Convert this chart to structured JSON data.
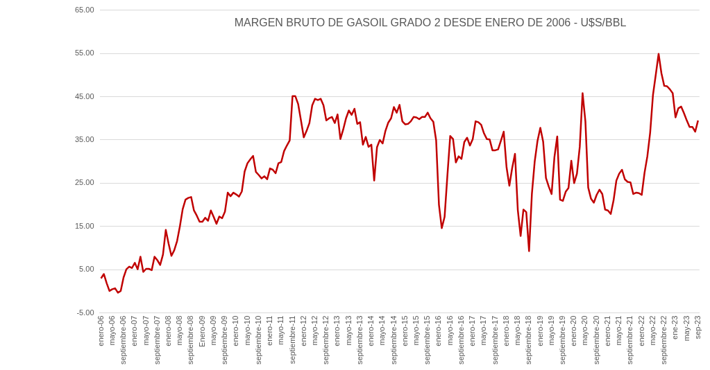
{
  "chart_data": {
    "type": "line",
    "title": "MARGEN BRUTO DE GASOIL GRADO 2 DESDE ENERO DE 2006 - U$S/BBL",
    "categories": [
      "enero-06",
      null,
      null,
      null,
      "mayo-06",
      null,
      null,
      null,
      "septiembre-06",
      null,
      null,
      null,
      "enero-07",
      null,
      null,
      null,
      "mayo-07",
      null,
      null,
      null,
      "septiembre-07",
      null,
      null,
      null,
      "enero-08",
      null,
      null,
      null,
      "mayo-08",
      null,
      null,
      null,
      "septiembre-08",
      null,
      null,
      null,
      "Enero-09",
      null,
      null,
      null,
      "mayo-09",
      null,
      null,
      null,
      "septiembre-09",
      null,
      null,
      null,
      "enero-10",
      null,
      null,
      null,
      "mayo-10",
      null,
      null,
      null,
      "septiembre-10",
      null,
      null,
      null,
      "enero-11",
      null,
      null,
      null,
      "mayo-11",
      null,
      null,
      null,
      "septiembre-11",
      null,
      null,
      null,
      "enero-12",
      null,
      null,
      null,
      "mayo-12",
      null,
      null,
      null,
      "septiembre-12",
      null,
      null,
      null,
      "enero-13",
      null,
      null,
      null,
      "mayo-13",
      null,
      null,
      null,
      "septiembre-13",
      null,
      null,
      null,
      "enero-14",
      null,
      null,
      null,
      "mayo-14",
      null,
      null,
      null,
      "septiembre-14",
      null,
      null,
      null,
      "enero-15",
      null,
      null,
      null,
      "mayo-15",
      null,
      null,
      null,
      "septiembre-15",
      null,
      null,
      null,
      "enero-16",
      null,
      null,
      null,
      "mayo-16",
      null,
      null,
      null,
      "septiembre-16",
      null,
      null,
      null,
      "enero-17",
      null,
      null,
      null,
      "mayo-17",
      null,
      null,
      null,
      "septiembre-17",
      null,
      null,
      null,
      "enero-18",
      null,
      null,
      null,
      "mayo-18",
      null,
      null,
      null,
      "septiembre-18",
      null,
      null,
      null,
      "enero-19",
      null,
      null,
      null,
      "mayo-19",
      null,
      null,
      null,
      "septiembre-19",
      null,
      null,
      null,
      "enero-20",
      null,
      null,
      null,
      "mayo-20",
      null,
      null,
      null,
      "septiembre-20",
      null,
      null,
      null,
      "enero-21",
      null,
      null,
      null,
      "mayo-21",
      null,
      null,
      null,
      "septiembre-21",
      null,
      null,
      null,
      "enero-22",
      null,
      null,
      null,
      "mayo-22",
      null,
      null,
      null,
      "septiembre-22",
      null,
      null,
      null,
      "ene-23",
      null,
      null,
      null,
      "may-23",
      null,
      null,
      null,
      "sep-23"
    ],
    "series": [
      {
        "color": "#c00000",
        "values": [
          3.0,
          4.0,
          1.9,
          0.1,
          0.5,
          0.7,
          -0.3,
          0.1,
          3.2,
          5.1,
          5.7,
          5.4,
          6.6,
          5.1,
          8.0,
          4.5,
          5.2,
          5.2,
          4.9,
          8.0,
          7.2,
          6.1,
          8.5,
          14.2,
          11.0,
          8.2,
          9.5,
          11.6,
          15.0,
          19.0,
          21.2,
          21.6,
          21.8,
          18.7,
          17.5,
          16.1,
          16.1,
          17.0,
          16.3,
          18.7,
          17.2,
          15.6,
          17.3,
          16.9,
          18.4,
          22.8,
          22.0,
          22.8,
          22.4,
          21.9,
          23.1,
          27.7,
          29.6,
          30.5,
          31.3,
          27.6,
          26.9,
          26.1,
          26.6,
          25.9,
          28.4,
          28.1,
          27.3,
          29.6,
          29.9,
          32.4,
          33.7,
          34.9,
          45.1,
          45.1,
          43.3,
          39.5,
          35.6,
          37.1,
          38.9,
          43.0,
          44.5,
          44.2,
          44.5,
          43.0,
          39.5,
          40.0,
          40.3,
          38.9,
          40.9,
          35.2,
          37.4,
          40.0,
          41.8,
          40.8,
          42.2,
          38.7,
          39.1,
          33.9,
          35.7,
          33.4,
          33.9,
          25.6,
          33.3,
          35.0,
          34.2,
          37.1,
          39.0,
          40.0,
          42.6,
          41.3,
          43.1,
          39.3,
          38.6,
          38.7,
          39.3,
          40.3,
          40.2,
          39.8,
          40.3,
          40.3,
          41.3,
          40.0,
          39.2,
          34.9,
          20.0,
          14.6,
          17.2,
          26.8,
          35.9,
          35.2,
          29.8,
          31.2,
          30.6,
          34.5,
          35.5,
          33.7,
          35.2,
          39.3,
          39.1,
          38.5,
          36.5,
          35.2,
          35.1,
          32.6,
          32.6,
          32.8,
          34.8,
          36.9,
          28.7,
          24.4,
          28.5,
          31.8,
          18.8,
          12.8,
          18.9,
          18.3,
          9.3,
          22.5,
          30.0,
          34.8,
          37.8,
          34.6,
          26.2,
          24.2,
          22.5,
          31.0,
          35.8,
          21.2,
          20.9,
          23.0,
          23.9,
          30.2,
          25.0,
          27.2,
          33.4,
          45.8,
          39.3,
          24.0,
          21.4,
          20.5,
          22.3,
          23.5,
          22.5,
          18.9,
          18.7,
          17.9,
          21.0,
          25.6,
          27.2,
          28.1,
          25.9,
          25.3,
          25.2,
          22.5,
          22.8,
          22.7,
          22.3,
          27.4,
          31.2,
          36.7,
          45.4,
          50.1,
          54.9,
          50.4,
          47.5,
          47.4,
          46.7,
          45.8,
          40.2,
          42.3,
          42.7,
          41.2,
          39.5,
          38.0,
          38.0,
          36.9,
          39.5
        ]
      }
    ],
    "ylim": [
      -5,
      65
    ],
    "yticks": [
      {
        "value": -5,
        "label": "-5.00"
      },
      {
        "value": 5,
        "label": "5.00"
      },
      {
        "value": 15,
        "label": "15.00"
      },
      {
        "value": 25,
        "label": "25.00"
      },
      {
        "value": 35,
        "label": "35.00"
      },
      {
        "value": 45,
        "label": "45.00"
      },
      {
        "value": 55,
        "label": "55.00"
      },
      {
        "value": 65,
        "label": "65.00"
      }
    ],
    "grid": "y",
    "marker": "none"
  }
}
